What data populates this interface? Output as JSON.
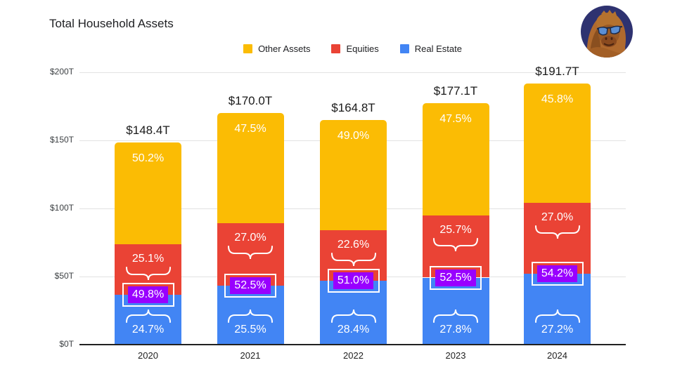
{
  "title": "Total Household Assets",
  "avatar": {
    "description": "orangutan-with-sunglasses-avatar",
    "background": "#2e3270"
  },
  "colors": {
    "other_assets": "#FBBC04",
    "equities": "#EA4335",
    "real_estate": "#4285F4",
    "highlight_box": "#9900FF",
    "grid": "#E2E2E2",
    "axis": "#212121",
    "text_dark": "#202124",
    "text_white": "#FFFFFF"
  },
  "legend": {
    "items": [
      {
        "label": "Other Assets",
        "color_key": "other_assets"
      },
      {
        "label": "Equities",
        "color_key": "equities"
      },
      {
        "label": "Real Estate",
        "color_key": "real_estate"
      }
    ]
  },
  "chart_data": {
    "type": "bar",
    "stacked": true,
    "title": "Total Household Assets",
    "categories": [
      "2020",
      "2021",
      "2022",
      "2023",
      "2024"
    ],
    "totals_trillions": [
      148.4,
      170.0,
      164.8,
      177.1,
      191.7
    ],
    "total_label_format": "$VALUEt",
    "series": [
      {
        "name": "Real Estate",
        "color_key": "real_estate",
        "pct": [
          24.7,
          25.5,
          28.4,
          27.8,
          27.2
        ]
      },
      {
        "name": "Equities",
        "color_key": "equities",
        "pct": [
          25.1,
          27.0,
          22.6,
          25.7,
          27.0
        ]
      },
      {
        "name": "Other Assets",
        "color_key": "other_assets",
        "pct": [
          50.2,
          47.5,
          49.0,
          47.5,
          45.8
        ]
      }
    ],
    "combined_highlight": {
      "description": "Real Estate + Equities combined share shown in purple box",
      "pct": [
        49.8,
        52.5,
        51.0,
        52.5,
        54.2
      ]
    },
    "y_axis": {
      "tick_values": [
        0,
        50,
        100,
        150,
        200
      ],
      "tick_prefix": "$",
      "tick_suffix": "T",
      "ylim": [
        0,
        200
      ]
    },
    "legend_position": "top",
    "grid": true
  }
}
